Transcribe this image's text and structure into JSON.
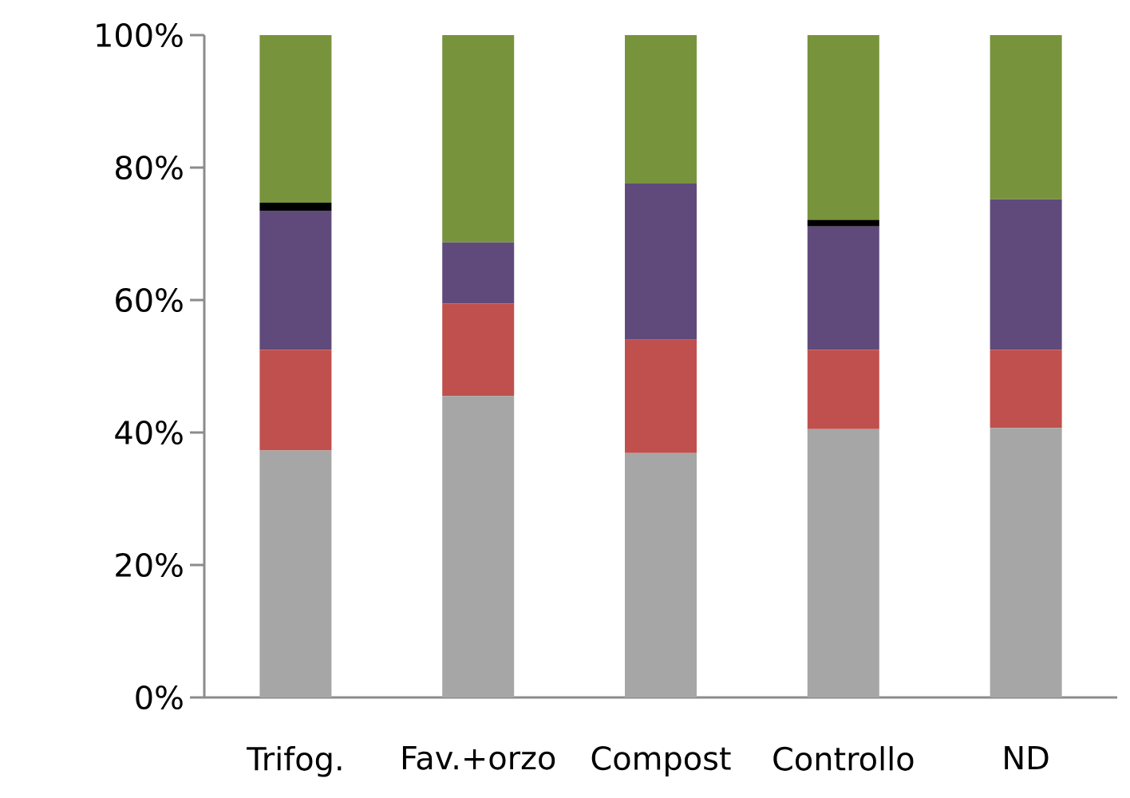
{
  "chart_data": {
    "type": "bar",
    "stacked": true,
    "categories": [
      "Trifog.",
      "Fav.+orzo",
      "Compost",
      "Controllo",
      "ND"
    ],
    "series": [
      {
        "color": "#a6a6a6",
        "values": [
          37.3,
          45.5,
          36.9,
          40.5,
          40.7
        ]
      },
      {
        "color": "#c0504d",
        "values": [
          15.2,
          14.0,
          17.1,
          12.0,
          11.8
        ]
      },
      {
        "color": "#604a7b",
        "values": [
          21.0,
          9.2,
          23.6,
          18.6,
          22.7
        ]
      },
      {
        "color": "#000000",
        "values": [
          1.2,
          null,
          null,
          1.0,
          null
        ]
      },
      {
        "color": "#77933c",
        "values": [
          25.3,
          31.3,
          22.4,
          27.9,
          24.8
        ]
      }
    ],
    "ylim": [
      0,
      100
    ],
    "yticks": [
      {
        "value": 0,
        "label": "0%"
      },
      {
        "value": 20,
        "label": "20%"
      },
      {
        "value": 40,
        "label": "40%"
      },
      {
        "value": 60,
        "label": "60%"
      },
      {
        "value": 80,
        "label": "80%"
      },
      {
        "value": 100,
        "label": "100%"
      }
    ],
    "grid": false
  }
}
